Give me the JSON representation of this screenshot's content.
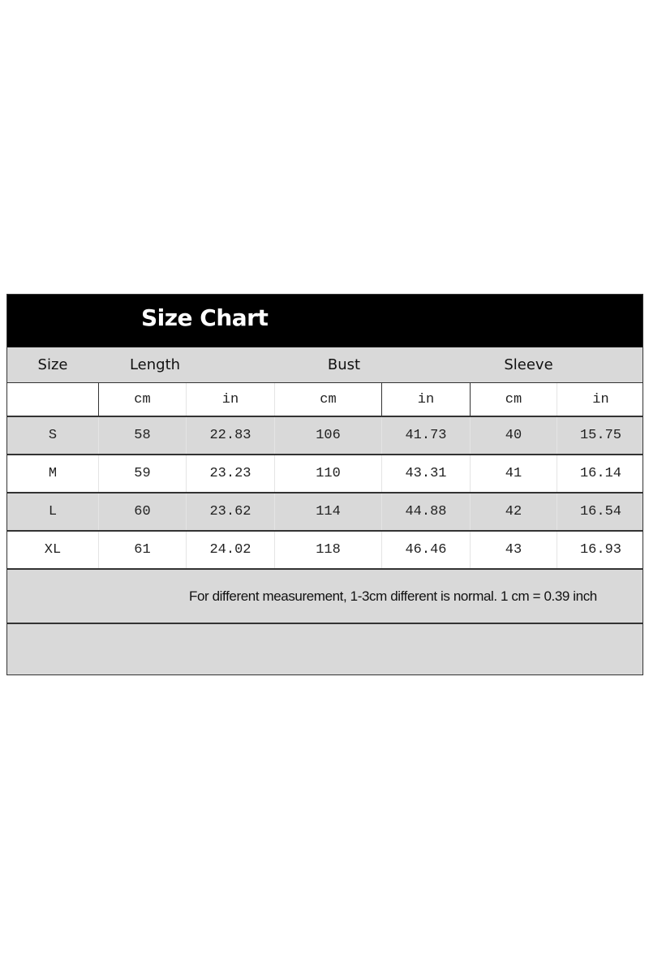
{
  "title": "Size Chart",
  "headers": {
    "size": "Size",
    "length": "Length",
    "bust": "Bust",
    "sleeve": "Sleeve"
  },
  "units": [
    "cm",
    "in",
    "cm",
    "in",
    "cm",
    "in"
  ],
  "rows": [
    {
      "size": "S",
      "values": [
        "58",
        "22.83",
        "106",
        "41.73",
        "40",
        "15.75"
      ]
    },
    {
      "size": "M",
      "values": [
        "59",
        "23.23",
        "110",
        "43.31",
        "41",
        "16.14"
      ]
    },
    {
      "size": "L",
      "values": [
        "60",
        "23.62",
        "114",
        "44.88",
        "42",
        "16.54"
      ]
    },
    {
      "size": "XL",
      "values": [
        "61",
        "24.02",
        "118",
        "46.46",
        "43",
        "16.93"
      ]
    }
  ],
  "note": "For different measurement, 1-3cm different is normal. 1 cm = 0.39 inch",
  "colors": {
    "title_bg": "#000000",
    "row_gray": "#d9d9d9",
    "row_white": "#ffffff"
  }
}
